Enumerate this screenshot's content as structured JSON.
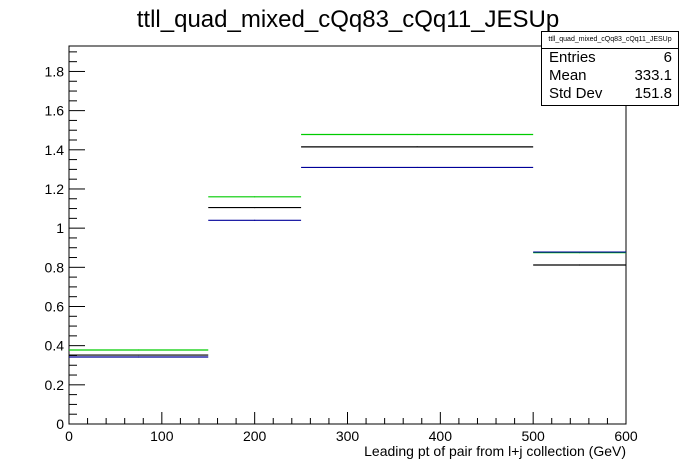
{
  "title": "ttll_quad_mixed_cQq83_cQq11_JESUp",
  "stats": {
    "name": "ttll_quad_mixed_cQq83_cQq11_JESUp",
    "rows": [
      {
        "label": "Entries",
        "value": "6"
      },
      {
        "label": "Mean",
        "value": "333.1"
      },
      {
        "label": "Std Dev",
        "value": "151.8"
      }
    ]
  },
  "chart_data": {
    "type": "line",
    "title": "ttll_quad_mixed_cQq83_cQq11_JESUp",
    "xlabel": "Leading pt of pair from l+j collection (GeV)",
    "ylabel": "",
    "xlim": [
      0,
      600
    ],
    "ylim": [
      0,
      1.93
    ],
    "grid": false,
    "bin_edges": [
      0,
      150,
      250,
      500,
      600
    ],
    "x_ticks": [
      0,
      100,
      200,
      300,
      400,
      500,
      600
    ],
    "y_ticks": [
      0,
      0.2,
      0.4,
      0.6,
      0.8,
      1,
      1.2,
      1.4,
      1.6,
      1.8
    ],
    "series": [
      {
        "color": "#00cc00",
        "values": [
          0.378,
          1.16,
          1.478,
          0.875
        ]
      },
      {
        "color": "#000000",
        "values": [
          0.352,
          1.105,
          1.415,
          0.812
        ]
      },
      {
        "color": "#000099",
        "values": [
          0.342,
          1.04,
          1.31,
          0.878
        ]
      }
    ]
  }
}
